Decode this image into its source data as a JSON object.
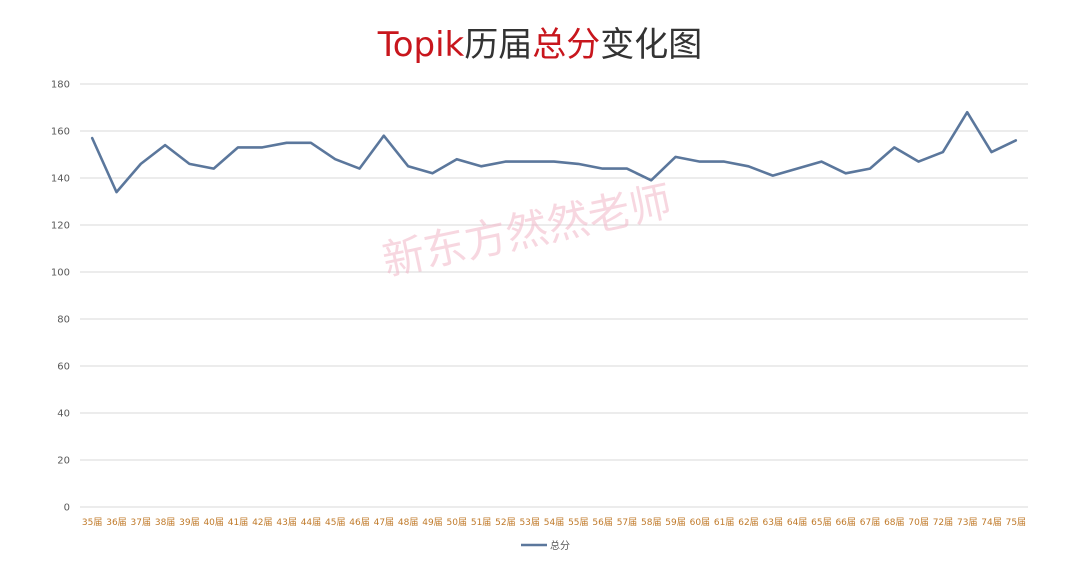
{
  "chart_data": {
    "type": "line",
    "title_parts": [
      {
        "text": "Topik",
        "color": "#c8161d"
      },
      {
        "text": "历届",
        "color": "#333333"
      },
      {
        "text": "总分",
        "color": "#c8161d"
      },
      {
        "text": "变化图",
        "color": "#333333"
      }
    ],
    "categories": [
      "35届",
      "36届",
      "37届",
      "38届",
      "39届",
      "40届",
      "41届",
      "42届",
      "43届",
      "44届",
      "45届",
      "46届",
      "47届",
      "48届",
      "49届",
      "50届",
      "51届",
      "52届",
      "53届",
      "54届",
      "55届",
      "56届",
      "57届",
      "58届",
      "59届",
      "60届",
      "61届",
      "62届",
      "63届",
      "64届",
      "65届",
      "66届",
      "67届",
      "68届",
      "70届",
      "72届",
      "73届",
      "74届",
      "75届"
    ],
    "series": [
      {
        "name": "总分",
        "color": "#5b779c",
        "values": [
          157,
          134,
          146,
          154,
          146,
          144,
          153,
          153,
          155,
          155,
          148,
          144,
          158,
          145,
          142,
          148,
          145,
          147,
          147,
          147,
          146,
          144,
          144,
          139,
          149,
          147,
          147,
          145,
          141,
          144,
          147,
          142,
          144,
          153,
          147,
          151,
          168,
          151,
          156
        ]
      }
    ],
    "ylim": [
      0,
      180
    ],
    "yticks": [
      0,
      20,
      40,
      60,
      80,
      100,
      120,
      140,
      160,
      180
    ],
    "grid": true,
    "legend_position": "bottom-center",
    "watermark": "新东方然然老师"
  }
}
